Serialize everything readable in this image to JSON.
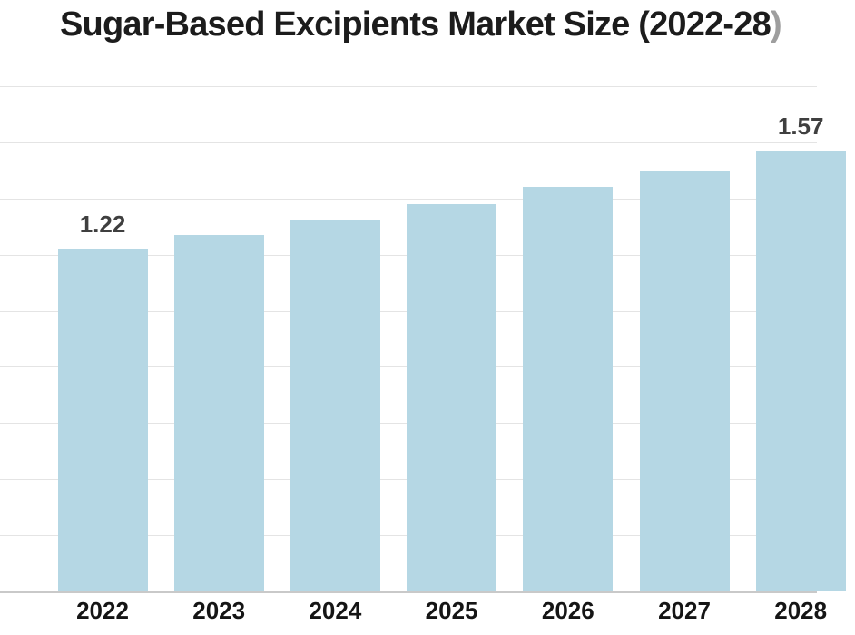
{
  "title": {
    "text": "Sugar-Based Excipients Market Size (2022-28",
    "closing_paren": ")"
  },
  "colors": {
    "background": "#ffffff",
    "bar": "#b5d7e4",
    "gridline": "#e4e4e4",
    "axis_line": "#c9c9c9",
    "title_text": "#1c1c1c",
    "title_paren": "#9e9e9e",
    "year_label": "#151515",
    "value_label": "#3f3f3f"
  },
  "chart_data": {
    "type": "bar",
    "title": "Sugar-Based Excipients Market Size (2022-28)",
    "categories": [
      "2022",
      "2023",
      "2024",
      "2025",
      "2026",
      "2027",
      "2028"
    ],
    "values": [
      1.22,
      1.27,
      1.32,
      1.38,
      1.44,
      1.5,
      1.57
    ],
    "value_labels": [
      "1.22",
      "",
      "",
      "",
      "",
      "",
      "1.57"
    ],
    "xlabel": "",
    "ylabel": "",
    "ylim": [
      0,
      1.8
    ],
    "grid_step": 0.2,
    "grid": true,
    "legend": false,
    "notes": "only first and last bars carry data labels; chart clipped at right edge"
  }
}
